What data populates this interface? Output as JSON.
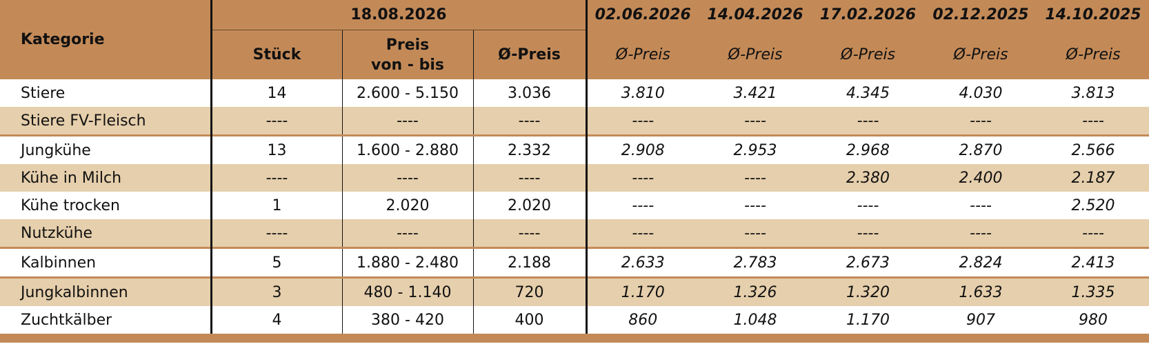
{
  "header": {
    "category_label": "Kategorie",
    "current_date": "18.08.2026",
    "current_cols": [
      "Stück",
      "Preis von - bis",
      "Ø-Preis"
    ],
    "price_range_line1": "Preis",
    "price_range_line2": "von - bis",
    "past_dates": [
      "02.06.2026",
      "14.04.2026",
      "17.02.2026",
      "02.12.2025",
      "14.10.2025"
    ],
    "past_col_label": "Ø-Preis"
  },
  "rows": [
    {
      "category": "Stiere",
      "stueck": "14",
      "range": "2.600 - 5.150",
      "avg": "3.036",
      "past": [
        "3.810",
        "3.421",
        "4.345",
        "4.030",
        "3.813"
      ]
    },
    {
      "category": "Stiere FV-Fleisch",
      "stueck": "----",
      "range": "----",
      "avg": "----",
      "past": [
        "----",
        "----",
        "----",
        "----",
        "----"
      ]
    },
    {
      "category": "Jungkühe",
      "stueck": "13",
      "range": "1.600 - 2.880",
      "avg": "2.332",
      "past": [
        "2.908",
        "2.953",
        "2.968",
        "2.870",
        "2.566"
      ]
    },
    {
      "category": "Kühe in Milch",
      "stueck": "----",
      "range": "----",
      "avg": "----",
      "past": [
        "----",
        "----",
        "2.380",
        "2.400",
        "2.187"
      ]
    },
    {
      "category": "Kühe trocken",
      "stueck": "1",
      "range": "2.020",
      "avg": "2.020",
      "past": [
        "----",
        "----",
        "----",
        "----",
        "2.520"
      ]
    },
    {
      "category": "Nutzkühe",
      "stueck": "----",
      "range": "----",
      "avg": "----",
      "past": [
        "----",
        "----",
        "----",
        "----",
        "----"
      ]
    },
    {
      "category": "Kalbinnen",
      "stueck": "5",
      "range": "1.880 - 2.480",
      "avg": "2.188",
      "past": [
        "2.633",
        "2.783",
        "2.673",
        "2.824",
        "2.413"
      ]
    },
    {
      "category": "Jungkalbinnen",
      "stueck": "3",
      "range": "480 - 1.140",
      "avg": "720",
      "past": [
        "1.170",
        "1.326",
        "1.320",
        "1.633",
        "1.335"
      ]
    },
    {
      "category": "Zuchtkälber",
      "stueck": "4",
      "range": "380 - 420",
      "avg": "400",
      "past": [
        "860",
        "1.048",
        "1.170",
        "907",
        "980"
      ]
    }
  ],
  "colors": {
    "header_bg": "#c38a58",
    "stripe_bg": "#e6cfac",
    "white_bg": "#ffffff"
  }
}
